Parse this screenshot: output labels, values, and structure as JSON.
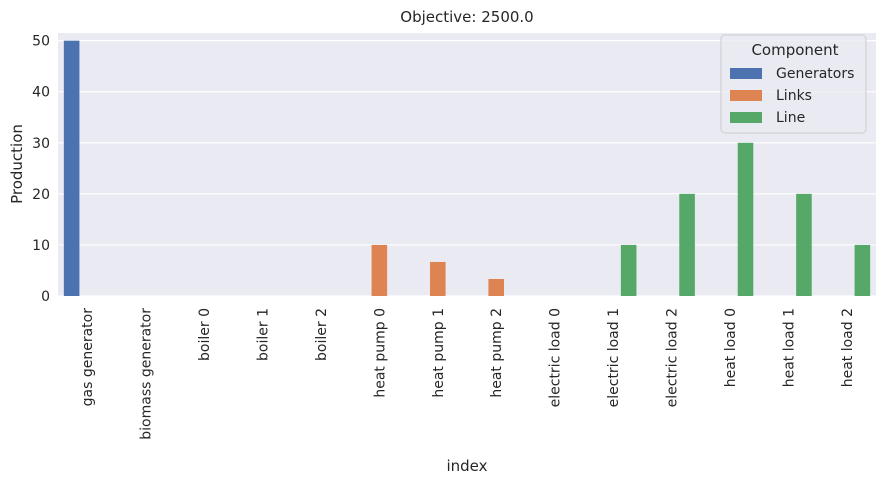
{
  "chart_data": {
    "type": "bar",
    "title": "Objective: 2500.0",
    "xlabel": "index",
    "ylabel": "Production",
    "ylim": [
      0,
      51.5
    ],
    "yticks": [
      0,
      10,
      20,
      30,
      40,
      50
    ],
    "grid": true,
    "legend": {
      "title": "Component",
      "placement": "top-right"
    },
    "categories": [
      "gas generator",
      "biomass generator",
      "boiler 0",
      "boiler 1",
      "boiler 2",
      "heat pump 0",
      "heat pump 1",
      "heat pump 2",
      "electric load 0",
      "electric load 1",
      "electric load 2",
      "heat load 0",
      "heat load 1",
      "heat load 2"
    ],
    "series": [
      {
        "name": "Generators",
        "color": "#4c72b0",
        "values": [
          50,
          0,
          0,
          0,
          0,
          0,
          0,
          0,
          0,
          0,
          0,
          0,
          0,
          0
        ]
      },
      {
        "name": "Links",
        "color": "#dd8452",
        "values": [
          0,
          0,
          0,
          0,
          0,
          10,
          6.67,
          3.33,
          0,
          0,
          0,
          0,
          0,
          0
        ]
      },
      {
        "name": "Line",
        "color": "#55a868",
        "values": [
          0,
          0,
          0,
          0,
          0,
          0,
          0,
          0,
          0,
          10,
          20,
          30,
          20,
          10
        ]
      }
    ]
  }
}
